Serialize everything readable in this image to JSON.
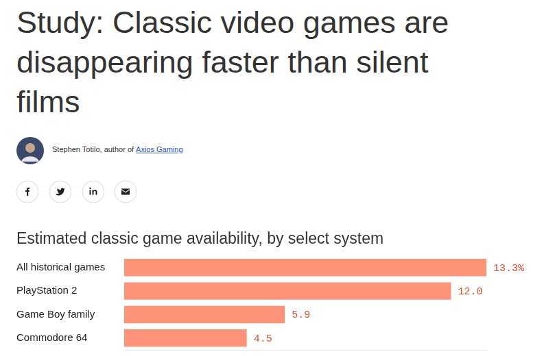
{
  "headline": "Study: Classic video games are disappearing faster than silent films",
  "byline": {
    "text": "Stephen Totilo, author of",
    "link": "Axios Gaming"
  },
  "chart_data": {
    "type": "bar",
    "orientation": "horizontal",
    "title": "Estimated classic game availability, by select system",
    "categories": [
      "All historical games",
      "PlayStation 2",
      "Game Boy family",
      "Commodore 64"
    ],
    "values": [
      13.3,
      12.0,
      5.9,
      4.5
    ],
    "value_labels": [
      "13.3%",
      "12.0",
      "5.9",
      "4.5"
    ],
    "color": "#fd9479",
    "xlim": [
      0,
      13.3
    ],
    "xticks": [],
    "grid": false,
    "data_labels": true,
    "tick_labels": "y"
  }
}
